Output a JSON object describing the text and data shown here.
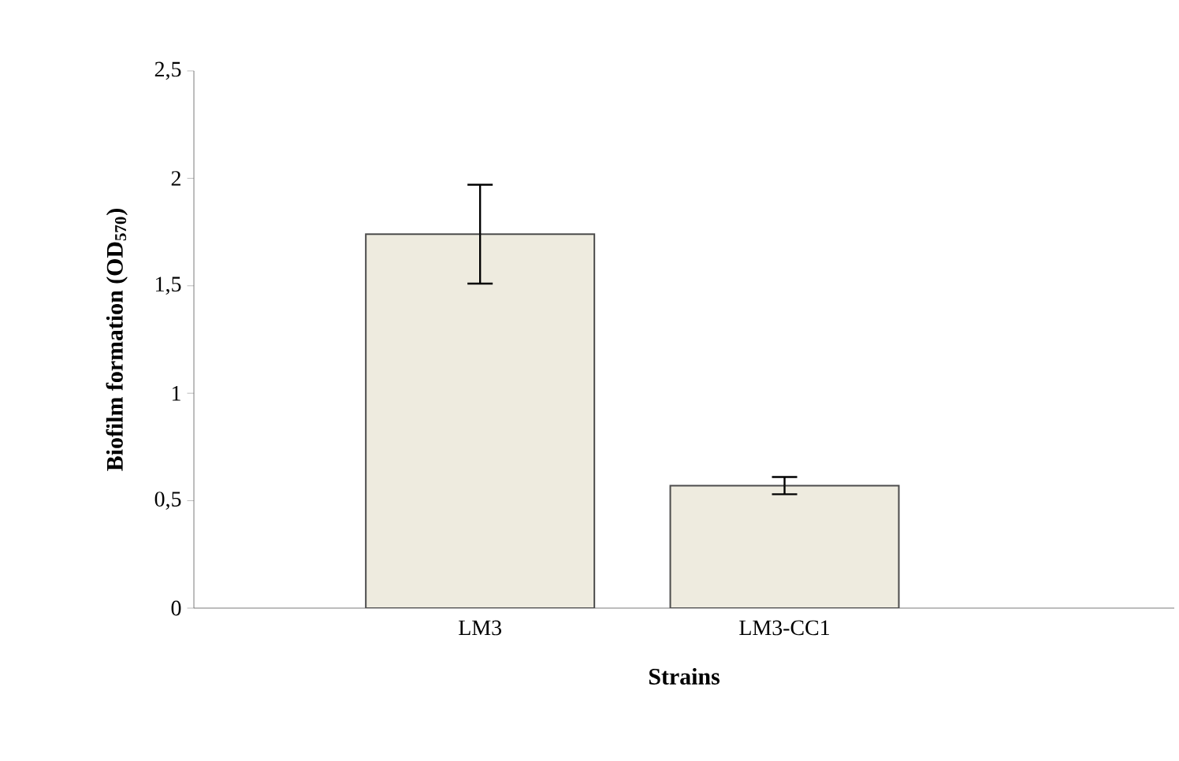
{
  "chart_data": {
    "type": "bar",
    "xlabel": "Strains",
    "ylabel": "Biofilm formation (OD$_{570}$)",
    "categories": [
      "LM3",
      "LM3-CC1"
    ],
    "values": [
      1.74,
      0.57
    ],
    "errors": [
      0.23,
      0.04
    ],
    "color": "#eeebdf",
    "ylim": [
      0,
      2.5
    ],
    "yticks": [
      0,
      {
        "value": 0.5,
        "label": "0,5"
      },
      1,
      {
        "value": 1.5,
        "label": "1,5"
      },
      2,
      {
        "value": 2.5,
        "label": "2,5"
      }
    ],
    "grid": false
  }
}
